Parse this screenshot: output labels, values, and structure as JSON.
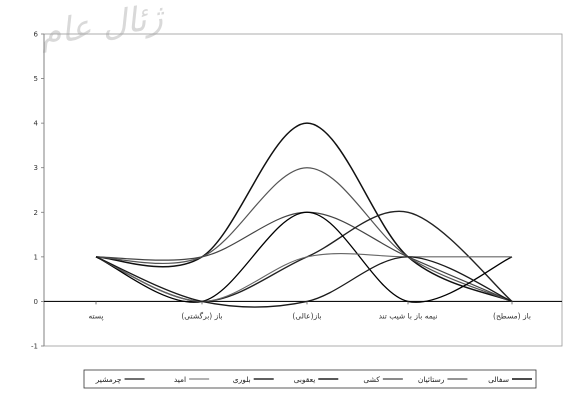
{
  "chart_data": {
    "type": "line",
    "categories": [
      "پسته",
      "باز (برگشتی)",
      "باز(عالی)",
      "نیمه باز با شیب تند",
      "باز (مسطح)"
    ],
    "ylim": [
      -1,
      6
    ],
    "yticks": [
      "-1",
      "0",
      "1",
      "2",
      "3",
      "4",
      "5",
      "6"
    ],
    "grid": false,
    "legend_position": "bottom",
    "series": [
      {
        "name": "سفالی",
        "values": [
          1,
          1,
          4,
          1,
          0
        ]
      },
      {
        "name": "رستائیان",
        "values": [
          1,
          1,
          3,
          1,
          0
        ]
      },
      {
        "name": "کشی",
        "values": [
          1,
          1,
          2,
          1,
          0
        ]
      },
      {
        "name": "یعقوبی",
        "values": [
          1,
          0,
          1,
          2,
          0
        ]
      },
      {
        "name": "بلوری",
        "values": [
          1,
          0,
          2,
          0,
          1
        ]
      },
      {
        "name": "امید",
        "values": [
          1,
          0,
          1,
          1,
          1
        ]
      },
      {
        "name": "چرمشیر",
        "values": [
          1,
          0,
          0,
          1,
          0
        ]
      }
    ]
  },
  "watermark": "ژئال عام"
}
